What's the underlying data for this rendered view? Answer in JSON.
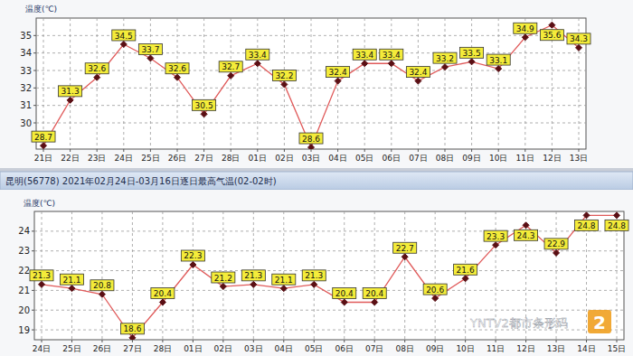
{
  "chart_data": [
    {
      "type": "line",
      "y_label": "温度(℃)",
      "categories": [
        "21日",
        "22日",
        "23日",
        "24日",
        "25日",
        "26日",
        "27日",
        "28日",
        "01日",
        "02日",
        "03日",
        "04日",
        "05日",
        "06日",
        "07日",
        "08日",
        "09日",
        "10日",
        "11日",
        "12日",
        "13日"
      ],
      "values": [
        28.7,
        31.3,
        32.6,
        34.5,
        33.7,
        32.6,
        30.5,
        32.7,
        33.4,
        32.2,
        28.6,
        32.4,
        33.4,
        33.4,
        32.4,
        33.2,
        33.5,
        33.1,
        34.9,
        35.6,
        34.3
      ],
      "color": "#e05a5a",
      "marker": "diamond",
      "ylim": [
        28.5,
        36
      ],
      "yticks": [
        30,
        31,
        32,
        33,
        34,
        35
      ],
      "grid": true,
      "data_labels": true
    },
    {
      "type": "line",
      "title": "昆明(56778) 2021年02月24日-03月16日逐日最高气温(02-02时)",
      "y_label": "温度(℃)",
      "categories": [
        "24日",
        "25日",
        "26日",
        "27日",
        "28日",
        "01日",
        "02日",
        "03日",
        "04日",
        "05日",
        "06日",
        "07日",
        "08日",
        "09日",
        "10日",
        "11日",
        "12日",
        "13日",
        "14日",
        "15日"
      ],
      "values": [
        21.3,
        21.1,
        20.8,
        18.6,
        20.4,
        22.3,
        21.2,
        21.3,
        21.1,
        21.3,
        20.4,
        20.4,
        22.7,
        20.6,
        21.6,
        23.3,
        24.3,
        22.9,
        24.8,
        24.8
      ],
      "color": "#e05a5a",
      "marker": "diamond",
      "ylim": [
        18.5,
        25
      ],
      "yticks": [
        19,
        20,
        21,
        22,
        23,
        24
      ],
      "grid": true,
      "data_labels": true
    }
  ],
  "watermark": "YNTV2都市条形码",
  "watermark_logo": "2"
}
